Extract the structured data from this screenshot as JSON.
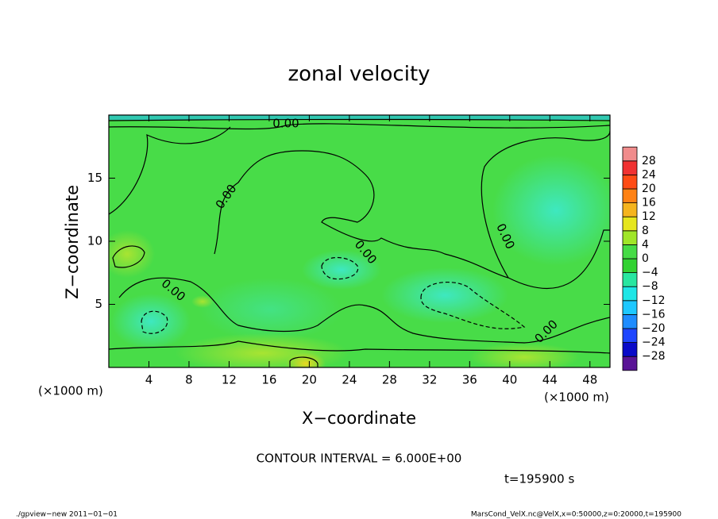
{
  "chart_data": {
    "type": "contour",
    "title": "zonal velocity",
    "x_label": "X−coordinate",
    "y_label": "Z−coordinate",
    "x_unit_label": "(×1000 m)",
    "xlim": [
      0,
      50
    ],
    "ylim": [
      0,
      20
    ],
    "xticks": [
      4,
      8,
      12,
      16,
      20,
      24,
      28,
      32,
      36,
      40,
      44,
      48
    ],
    "yticks": [
      5,
      10,
      15
    ],
    "contour_labels": [
      "0.00",
      "0.00",
      "0.00",
      "0.00",
      "0.00",
      "0.00"
    ],
    "contour_interval_text": "CONTOUR INTERVAL = 6.000E+00",
    "time_text": "t=195900 s",
    "footer_left": "./gpview−new   2011−01−01",
    "footer_right": "MarsCond_VelX.nc@VelX,x=0:50000,z=0:20000,t=195900",
    "colorbar": {
      "ticks": [
        -28,
        -24,
        -20,
        -16,
        -12,
        -8,
        -4,
        0,
        4,
        8,
        12,
        16,
        20,
        24,
        28
      ],
      "tick_labels": [
        "−28",
        "−24",
        "−20",
        "−16",
        "−12",
        "−8",
        "−4",
        "0",
        "4",
        "8",
        "12",
        "16",
        "20",
        "24",
        "28"
      ],
      "colors": [
        "#5a1496",
        "#0a0ac8",
        "#1e46ff",
        "#1e8cff",
        "#1ec8ff",
        "#1ee6e6",
        "#28e6a0",
        "#32d232",
        "#46dc46",
        "#a0e628",
        "#e6e61e",
        "#f5b41e",
        "#ff8214",
        "#ff4b14",
        "#f03232",
        "#f08c8c"
      ]
    }
  }
}
